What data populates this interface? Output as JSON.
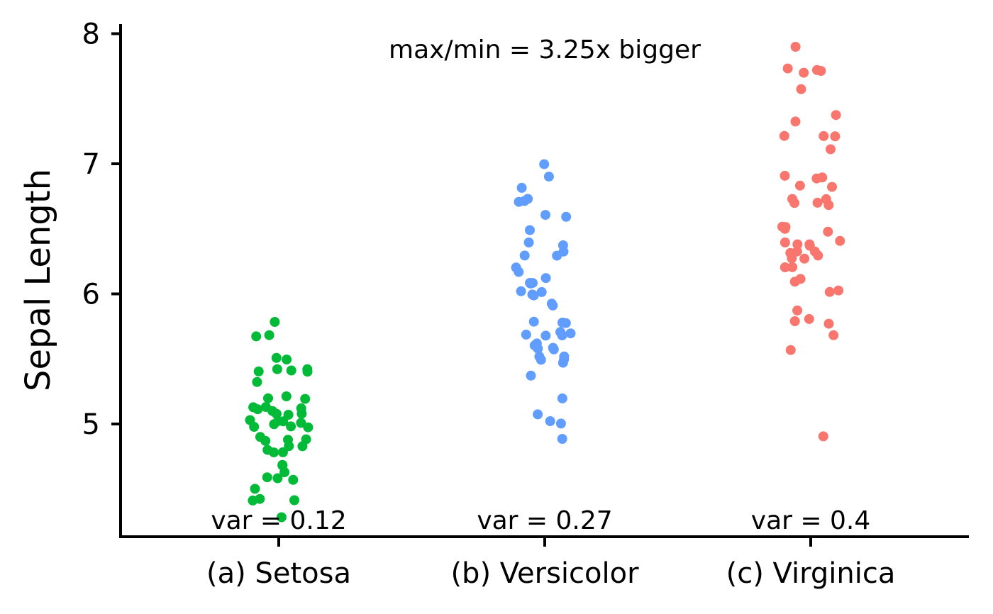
{
  "chart_data": {
    "type": "scatter",
    "ylabel": "Sepal Length",
    "xlabel": "",
    "ylim": [
      4.13,
      8.08
    ],
    "yticks": [
      "5",
      "6",
      "7",
      "8"
    ],
    "categories": [
      "(a) Setosa",
      "(b) Versicolor",
      "(c) Virginica"
    ],
    "annotation_top": "max/min = 3.25x bigger",
    "variance_labels": [
      "var = 0.12",
      "var = 0.27",
      "var = 0.4"
    ],
    "colors": [
      "#00BA38",
      "#619CFF",
      "#F8766D"
    ],
    "grid": false,
    "legend": "none",
    "series": [
      {
        "values": [
          5.1,
          4.9,
          4.7,
          4.6,
          5.0,
          5.4,
          4.6,
          5.0,
          4.4,
          4.9,
          5.4,
          4.8,
          4.8,
          4.3,
          5.8,
          5.7,
          5.4,
          5.1,
          5.7,
          5.1,
          5.4,
          5.1,
          4.6,
          5.1,
          4.8,
          5.0,
          5.0,
          5.2,
          5.2,
          4.7,
          4.8,
          5.4,
          5.2,
          5.5,
          4.9,
          5.0,
          5.5,
          4.9,
          4.4,
          5.1,
          5.0,
          4.5,
          4.4,
          5.0,
          5.1,
          4.8,
          5.1,
          4.6,
          5.3,
          5.0
        ]
      },
      {
        "values": [
          7.0,
          6.4,
          6.9,
          5.5,
          6.5,
          5.7,
          6.3,
          4.9,
          6.6,
          5.2,
          5.0,
          5.9,
          6.0,
          6.1,
          5.6,
          6.7,
          5.6,
          5.8,
          6.2,
          5.6,
          5.9,
          6.1,
          6.3,
          6.1,
          6.4,
          6.6,
          6.8,
          6.7,
          6.0,
          5.7,
          5.5,
          5.5,
          5.8,
          6.0,
          5.4,
          6.0,
          6.7,
          6.3,
          5.6,
          5.5,
          5.5,
          6.1,
          5.8,
          5.0,
          5.6,
          5.7,
          5.7,
          6.2,
          5.1,
          5.7
        ]
      },
      {
        "values": [
          6.3,
          5.8,
          7.1,
          6.3,
          6.5,
          7.6,
          4.9,
          7.3,
          6.7,
          7.2,
          6.5,
          6.4,
          6.8,
          5.7,
          5.8,
          6.4,
          6.5,
          7.7,
          7.7,
          6.0,
          6.9,
          5.6,
          7.7,
          6.3,
          6.7,
          7.2,
          6.2,
          6.1,
          6.4,
          7.2,
          7.4,
          7.9,
          6.4,
          6.3,
          6.1,
          7.7,
          6.3,
          6.4,
          6.0,
          6.9,
          6.7,
          6.9,
          5.8,
          6.8,
          6.7,
          6.7,
          6.3,
          6.5,
          6.2,
          5.9
        ]
      }
    ]
  }
}
